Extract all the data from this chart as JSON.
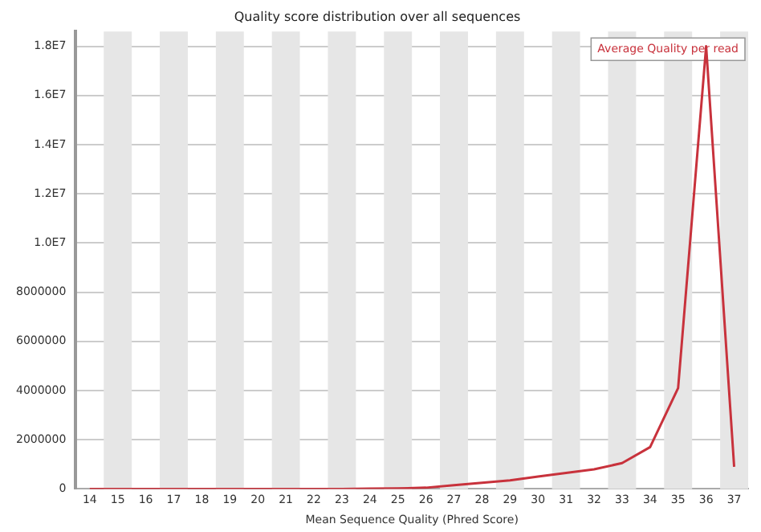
{
  "chart_data": {
    "type": "line",
    "title": "Quality score distribution over all sequences",
    "xlabel": "Mean Sequence Quality (Phred Score)",
    "categories": [
      "14",
      "15",
      "16",
      "17",
      "18",
      "19",
      "20",
      "21",
      "22",
      "23",
      "24",
      "25",
      "26",
      "27",
      "28",
      "29",
      "30",
      "31",
      "32",
      "33",
      "34",
      "35",
      "36",
      "37"
    ],
    "series": [
      {
        "name": "Average Quality per read",
        "color": "#c8323c",
        "values": [
          0,
          0,
          0,
          0,
          0,
          0,
          0,
          0,
          0,
          0,
          10000,
          20000,
          50000,
          150000,
          250000,
          350000,
          500000,
          650000,
          800000,
          1050000,
          1700000,
          4100000,
          18000000,
          900000
        ]
      }
    ],
    "ylim": [
      0,
      18600000
    ],
    "yticks": [
      0,
      2000000,
      4000000,
      6000000,
      8000000,
      {
        "value": 10000000,
        "label": "1.0E7"
      },
      {
        "value": 12000000,
        "label": "1.2E7"
      },
      {
        "value": 14000000,
        "label": "1.4E7"
      },
      {
        "value": 16000000,
        "label": "1.6E7"
      },
      {
        "value": 18000000,
        "label": "1.8E7"
      }
    ],
    "grid": "y",
    "legend": "top right",
    "marker": "none",
    "bands": [
      {
        "axis": "x",
        "from": "15",
        "to": "15",
        "color": "#e6e6e6"
      },
      {
        "axis": "x",
        "from": "17",
        "to": "17",
        "color": "#e6e6e6"
      },
      {
        "axis": "x",
        "from": "19",
        "to": "19",
        "color": "#e6e6e6"
      },
      {
        "axis": "x",
        "from": "21",
        "to": "21",
        "color": "#e6e6e6"
      },
      {
        "axis": "x",
        "from": "23",
        "to": "23",
        "color": "#e6e6e6"
      },
      {
        "axis": "x",
        "from": "25",
        "to": "25",
        "color": "#e6e6e6"
      },
      {
        "axis": "x",
        "from": "27",
        "to": "27",
        "color": "#e6e6e6"
      },
      {
        "axis": "x",
        "from": "29",
        "to": "29",
        "color": "#e6e6e6"
      },
      {
        "axis": "x",
        "from": "31",
        "to": "31",
        "color": "#e6e6e6"
      },
      {
        "axis": "x",
        "from": "33",
        "to": "33",
        "color": "#e6e6e6"
      },
      {
        "axis": "x",
        "from": "35",
        "to": "35",
        "color": "#e6e6e6"
      },
      {
        "axis": "x",
        "from": "37",
        "to": "37",
        "color": "#e6e6e6"
      }
    ]
  }
}
